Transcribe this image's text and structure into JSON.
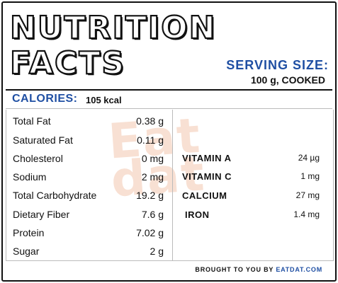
{
  "header": {
    "title_line1": "NUTRITION",
    "title_line2": "FACTS",
    "serving_label": "SERVING SIZE:",
    "serving_value": "100 g, COOKED"
  },
  "calories": {
    "label": "CALORIES:",
    "value": "105 kcal"
  },
  "macros": [
    {
      "name": "Total Fat",
      "value": "0.38 g"
    },
    {
      "name": "Saturated Fat",
      "value": "0.11 g"
    },
    {
      "name": "Cholesterol",
      "value": "0 mg"
    },
    {
      "name": "Sodium",
      "value": "2 mg"
    },
    {
      "name": "Total Carbohydrate",
      "value": "19.2 g"
    },
    {
      "name": "Dietary Fiber",
      "value": "7.6 g"
    },
    {
      "name": "Protein",
      "value": "7.02 g"
    },
    {
      "name": "Sugar",
      "value": "2 g"
    }
  ],
  "micros": [
    {
      "name": "VITAMIN A",
      "value": "24 µg"
    },
    {
      "name": "VITAMIN C",
      "value": "1 mg"
    },
    {
      "name": "CALCIUM",
      "value": "27 mg"
    },
    {
      "name": "IRON",
      "value": "1.4 mg"
    }
  ],
  "footer": {
    "prefix": "BROUGHT TO YOU BY",
    "brand": "EATDAT.COM"
  },
  "watermark": {
    "line1": "Eat",
    "line2": "dat"
  },
  "colors": {
    "accent_blue": "#1f4fa3",
    "watermark": "#f3c8b0"
  }
}
